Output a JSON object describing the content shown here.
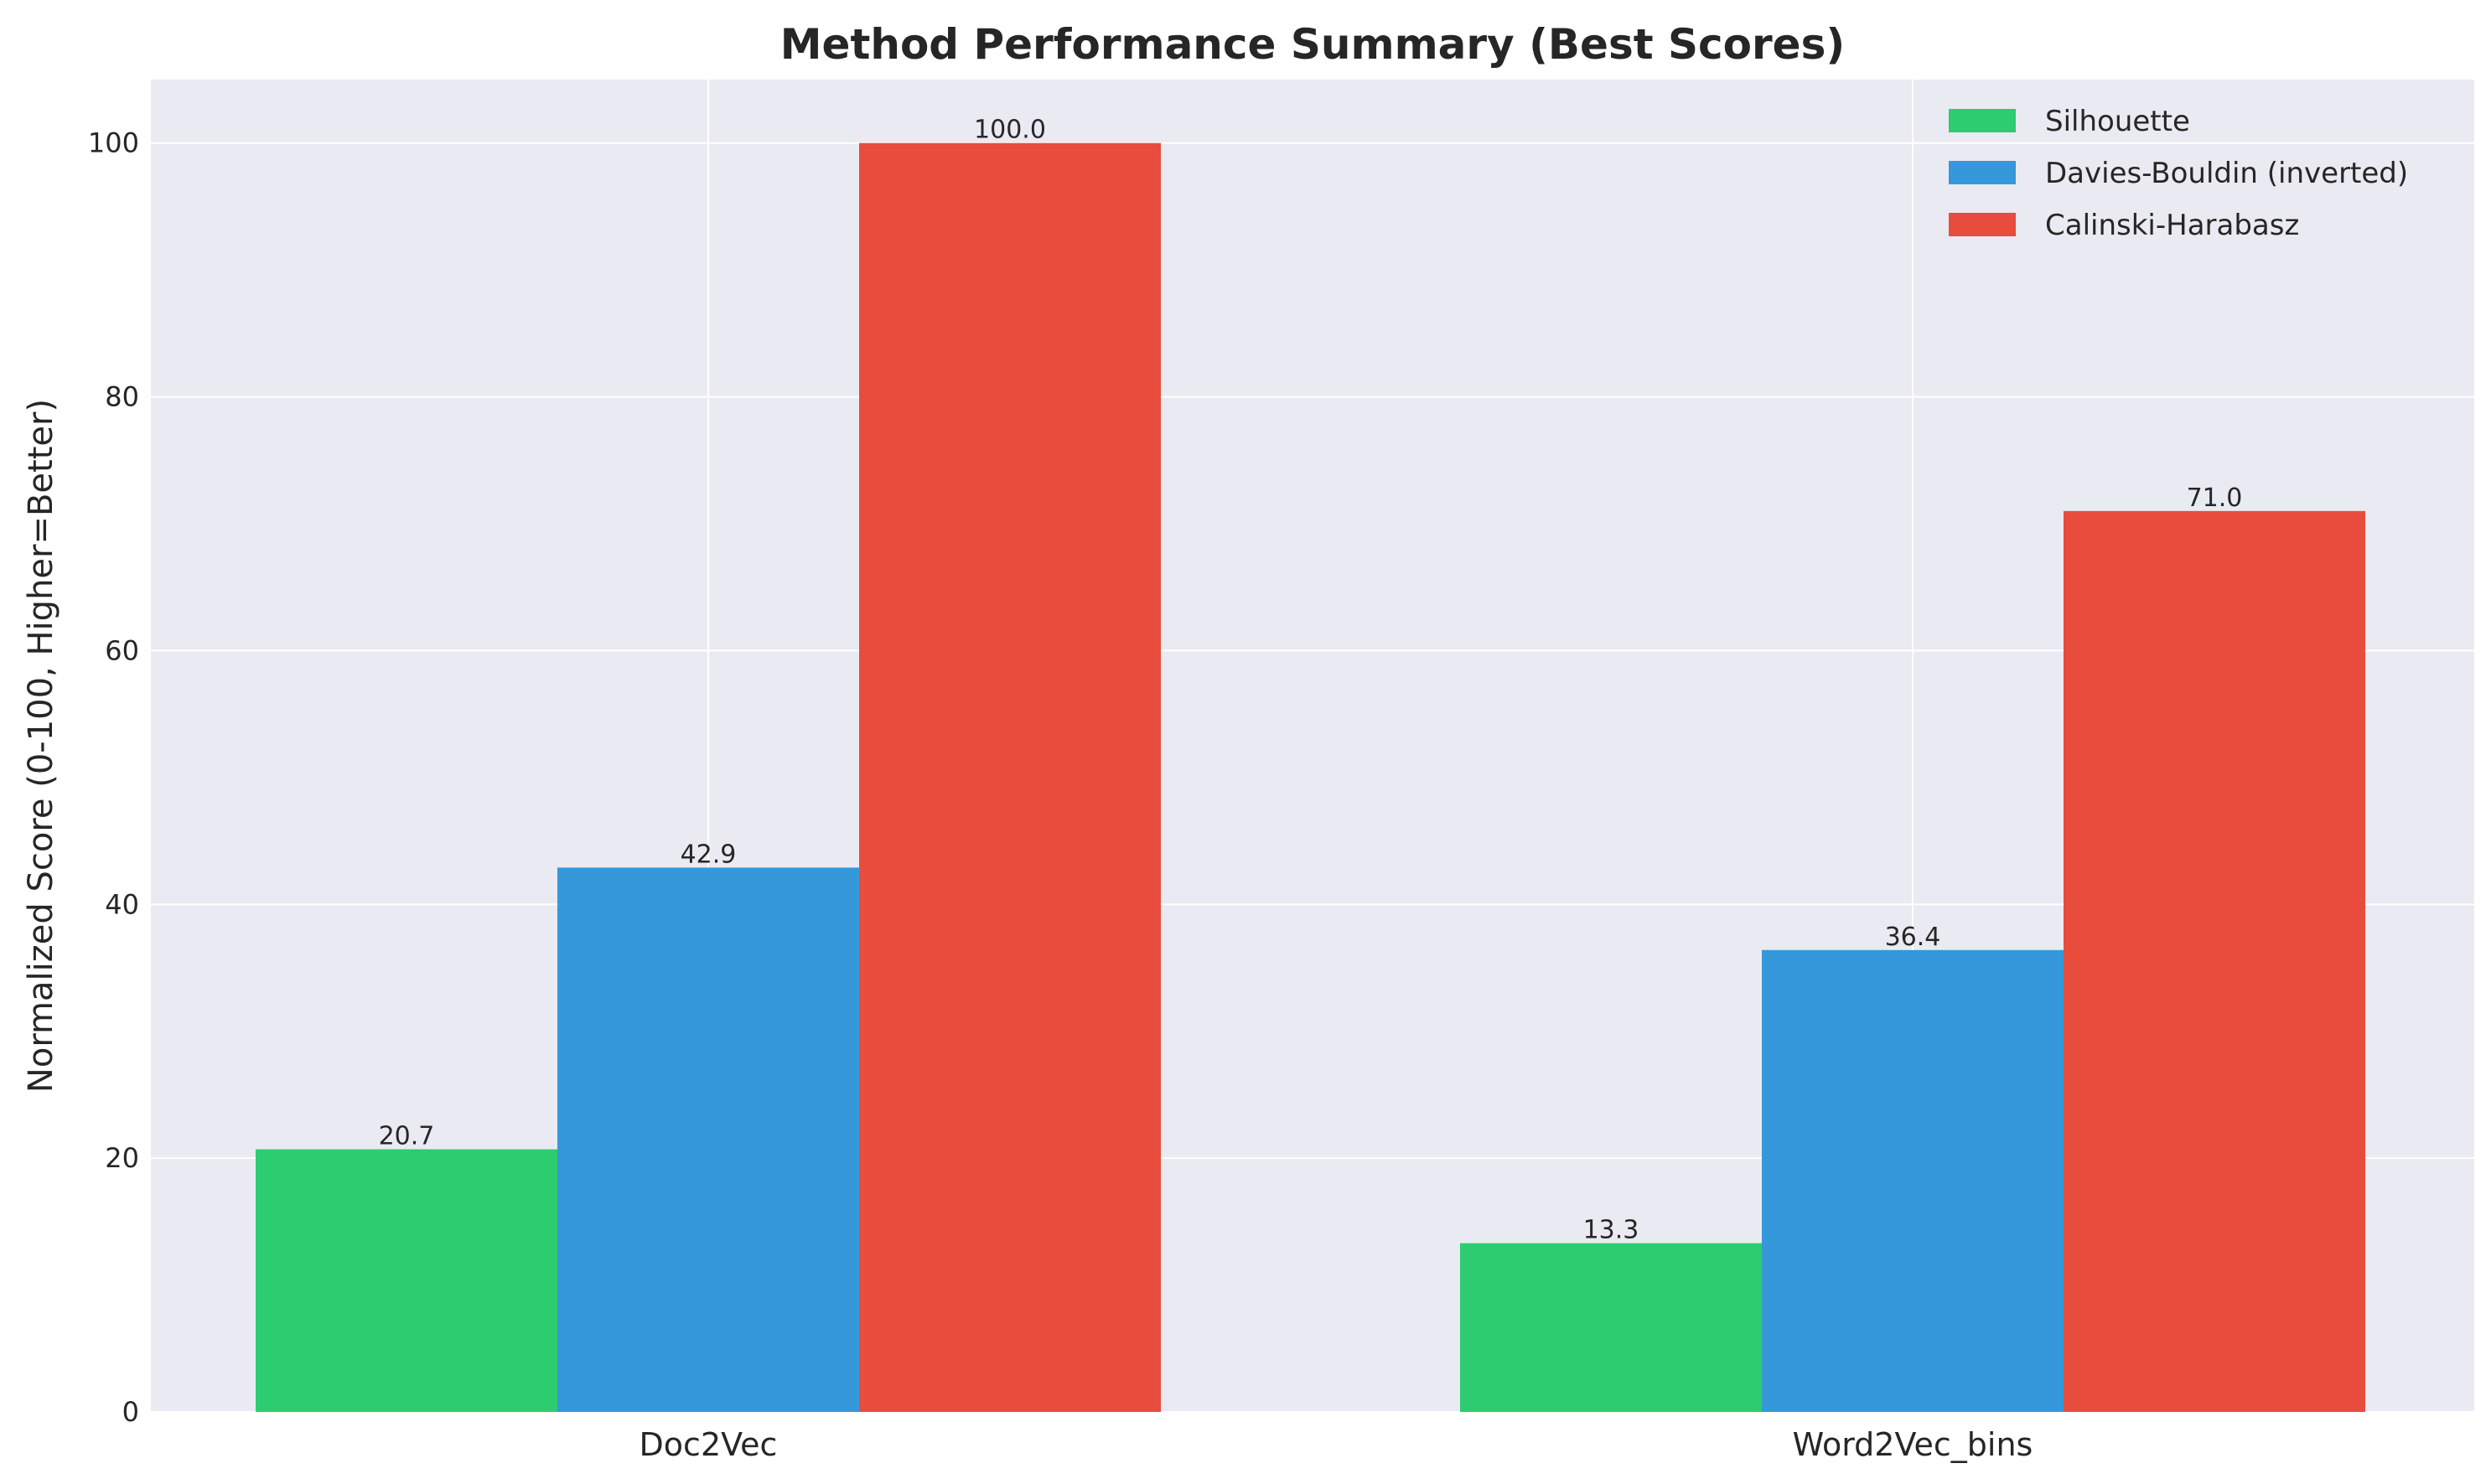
{
  "chart_data": {
    "type": "bar",
    "title": "Method Performance Summary (Best Scores)",
    "xlabel": "",
    "ylabel": "Normalized Score (0-100, Higher=Better)",
    "categories": [
      "Doc2Vec",
      "Word2Vec_bins"
    ],
    "series": [
      {
        "name": "Silhouette",
        "color": "#2ecc71",
        "values": [
          20.7,
          13.3
        ]
      },
      {
        "name": "Davies-Bouldin (inverted)",
        "color": "#3498db",
        "values": [
          42.9,
          36.4
        ]
      },
      {
        "name": "Calinski-Harabasz",
        "color": "#e74c3c",
        "values": [
          100.0,
          71.0
        ]
      }
    ],
    "data_labels": [
      [
        "20.7",
        "13.3"
      ],
      [
        "42.9",
        "36.4"
      ],
      [
        "100.0",
        "71.0"
      ]
    ],
    "ylim": [
      0,
      105
    ],
    "yticks": [
      0,
      20,
      40,
      60,
      80,
      100
    ],
    "grid": true,
    "legend_position": "top-right",
    "background_color": "#eaeaf2"
  }
}
